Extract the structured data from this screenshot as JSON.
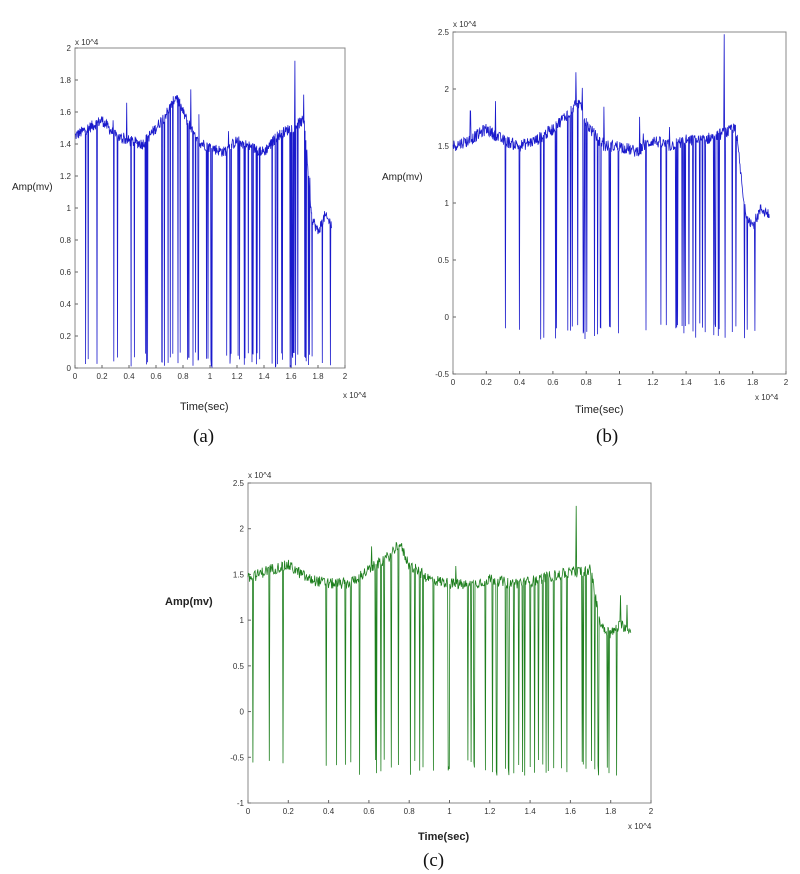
{
  "chart_data": [
    {
      "type": "line",
      "caption": "(a)",
      "ylabel": "Amp(mv)",
      "xlabel": "Time(sec)",
      "x_multiplier": "x 10^4",
      "y_multiplier": "x 10^4",
      "xlim": [
        0,
        2
      ],
      "ylim": [
        0,
        2
      ],
      "xticks": [
        "0",
        "0.2",
        "0.4",
        "0.6",
        "0.8",
        "1",
        "1.2",
        "1.4",
        "1.6",
        "1.8",
        "2"
      ],
      "yticks": [
        "0",
        "0.2",
        "0.4",
        "0.6",
        "0.8",
        "1",
        "1.2",
        "1.4",
        "1.6",
        "1.8",
        "2"
      ],
      "color": "#1a1acc",
      "series": [
        {
          "baseline_x": [
            0,
            0.1,
            0.2,
            0.3,
            0.4,
            0.5,
            0.6,
            0.7,
            0.75,
            0.8,
            0.9,
            1.0,
            1.1,
            1.2,
            1.3,
            1.4,
            1.5,
            1.6,
            1.7,
            1.75,
            1.8,
            1.85,
            1.9
          ],
          "baseline_y": [
            1.45,
            1.5,
            1.55,
            1.45,
            1.42,
            1.4,
            1.5,
            1.62,
            1.7,
            1.6,
            1.42,
            1.38,
            1.35,
            1.42,
            1.38,
            1.35,
            1.45,
            1.5,
            1.55,
            0.95,
            0.85,
            0.95,
            0.9
          ],
          "spike_min": 0,
          "spike_max": 1.92
        }
      ]
    },
    {
      "type": "line",
      "caption": "(b)",
      "ylabel": "Amp(mv)",
      "xlabel": "Time(sec)",
      "x_multiplier": "x 10^4",
      "y_multiplier": "x 10^4",
      "xlim": [
        0,
        2
      ],
      "ylim": [
        -0.5,
        2.5
      ],
      "xticks": [
        "0",
        "0.2",
        "0.4",
        "0.6",
        "0.8",
        "1",
        "1.2",
        "1.4",
        "1.6",
        "1.8",
        "2"
      ],
      "yticks": [
        "-0.5",
        "0",
        "0.5",
        "1",
        "1.5",
        "2",
        "2.5"
      ],
      "color": "#1a1acc",
      "series": [
        {
          "baseline_x": [
            0,
            0.1,
            0.2,
            0.3,
            0.4,
            0.5,
            0.6,
            0.7,
            0.75,
            0.8,
            0.9,
            1.0,
            1.1,
            1.2,
            1.3,
            1.4,
            1.5,
            1.6,
            1.7,
            1.75,
            1.8,
            1.85,
            1.9
          ],
          "baseline_y": [
            1.5,
            1.55,
            1.65,
            1.55,
            1.5,
            1.55,
            1.65,
            1.8,
            1.9,
            1.7,
            1.5,
            1.5,
            1.45,
            1.55,
            1.5,
            1.55,
            1.55,
            1.6,
            1.65,
            0.95,
            0.8,
            0.95,
            0.9
          ],
          "spike_min": -0.2,
          "spike_max": 2.48
        }
      ]
    },
    {
      "type": "line",
      "caption": "(c)",
      "ylabel": "Amp(mv)",
      "xlabel": "Time(sec)",
      "x_multiplier": "x 10^4",
      "y_multiplier": "x 10^4",
      "xlim": [
        0,
        2
      ],
      "ylim": [
        -1,
        2.5
      ],
      "xticks": [
        "0",
        "0.2",
        "0.4",
        "0.6",
        "0.8",
        "1",
        "1.2",
        "1.4",
        "1.6",
        "1.8",
        "2"
      ],
      "yticks": [
        "-1",
        "-0.5",
        "0",
        "0.5",
        "1",
        "1.5",
        "2",
        "2.5"
      ],
      "color": "#1e7f1e",
      "series": [
        {
          "baseline_x": [
            0,
            0.1,
            0.2,
            0.3,
            0.4,
            0.5,
            0.6,
            0.7,
            0.75,
            0.8,
            0.9,
            1.0,
            1.1,
            1.2,
            1.3,
            1.4,
            1.5,
            1.6,
            1.7,
            1.75,
            1.8,
            1.85,
            1.9
          ],
          "baseline_y": [
            1.45,
            1.55,
            1.6,
            1.45,
            1.4,
            1.4,
            1.55,
            1.7,
            1.85,
            1.6,
            1.45,
            1.4,
            1.38,
            1.45,
            1.4,
            1.42,
            1.48,
            1.52,
            1.55,
            0.95,
            0.85,
            0.95,
            0.9
          ],
          "spike_min": -0.7,
          "spike_max": 2.25
        }
      ]
    }
  ]
}
